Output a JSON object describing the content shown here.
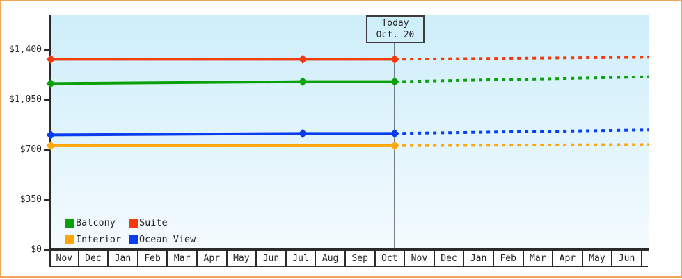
{
  "window": {
    "border_color": "#eda65b",
    "background": "#ffffff"
  },
  "chart_data": {
    "type": "line",
    "title": "",
    "today_annotation": {
      "line1": "Today",
      "line2": "Oct. 20"
    },
    "y_axis": {
      "ylim": [
        0,
        1400
      ],
      "ticks": [
        {
          "value": 0,
          "label": "$0"
        },
        {
          "value": 350,
          "label": "$350"
        },
        {
          "value": 700,
          "label": "$700"
        },
        {
          "value": 1050,
          "label": "$1,050"
        },
        {
          "value": 1400,
          "label": "$1,400"
        }
      ]
    },
    "x_axis": {
      "months": [
        "Nov",
        "Dec",
        "Jan",
        "Feb",
        "Mar",
        "Apr",
        "May",
        "Jun",
        "Jul",
        "Aug",
        "Sep",
        "Oct",
        "Nov",
        "Dec",
        "Jan",
        "Feb",
        "Mar",
        "Apr",
        "May",
        "Jun"
      ],
      "today_month_fraction": 11.6,
      "x_max_month": 20.18
    },
    "series": [
      {
        "name": "Balcony",
        "color": "#0aa00a",
        "history": [
          {
            "x": 0,
            "value": 1165
          },
          {
            "x": 8.5,
            "value": 1178
          },
          {
            "x": 11.6,
            "value": 1178
          }
        ],
        "forecast_end": {
          "x": 20.18,
          "value": 1212
        }
      },
      {
        "name": "Suite",
        "color": "#f23a0c",
        "history": [
          {
            "x": 0,
            "value": 1335
          },
          {
            "x": 8.5,
            "value": 1335
          },
          {
            "x": 11.6,
            "value": 1335
          }
        ],
        "forecast_end": {
          "x": 20.18,
          "value": 1350
        }
      },
      {
        "name": "Interior",
        "color": "#ffa60a",
        "history": [
          {
            "x": 0,
            "value": 730
          },
          {
            "x": 11.6,
            "value": 730
          }
        ],
        "forecast_end": {
          "x": 20.18,
          "value": 737
        }
      },
      {
        "name": "Ocean View",
        "color": "#0a3cf0",
        "history": [
          {
            "x": 0,
            "value": 805
          },
          {
            "x": 8.5,
            "value": 815
          },
          {
            "x": 11.6,
            "value": 815
          }
        ],
        "forecast_end": {
          "x": 20.18,
          "value": 840
        }
      }
    ],
    "legend": {
      "position": "bottom-left-inside",
      "rows": [
        [
          "Balcony",
          "Suite"
        ],
        [
          "Interior",
          "Ocean View"
        ]
      ]
    },
    "style": {
      "plot_bg_top": "#cdeefa",
      "plot_bg_bottom": "#f4fbfe",
      "axis_color": "#2b2b2b",
      "text_color": "#2a2a2a",
      "grid": "off",
      "solid_segment": "history (Nov through Oct 20)",
      "dashed_segment": "forecast (after Oct 20)"
    }
  }
}
